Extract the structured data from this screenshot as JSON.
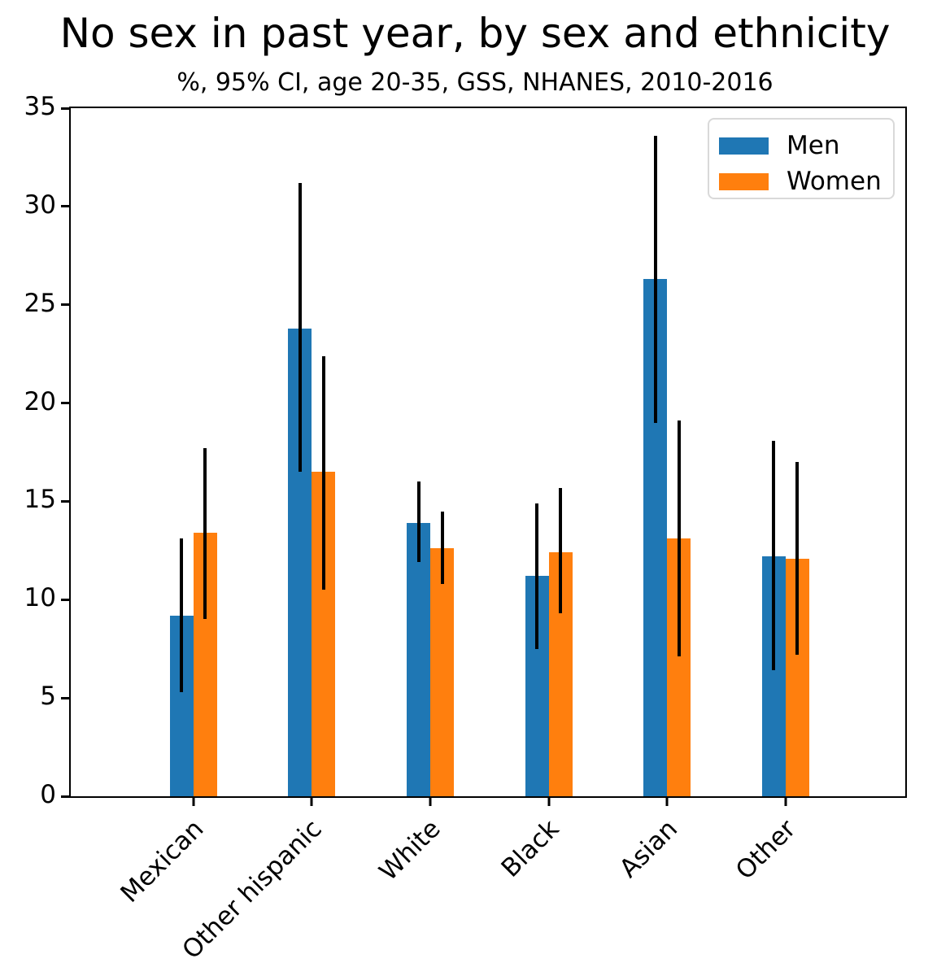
{
  "chart_data": {
    "type": "bar",
    "title": "No sex in past year, by sex and ethnicity",
    "subtitle": "%, 95% CI, age 20-35, GSS, NHANES, 2010-2016",
    "categories": [
      "Mexican",
      "Other hispanic",
      "White",
      "Black",
      "Asian",
      "Other"
    ],
    "series": [
      {
        "name": "Men",
        "color": "#1f77b4",
        "values": [
          9.2,
          23.8,
          13.9,
          11.2,
          26.3,
          12.2
        ],
        "ci_low": [
          5.3,
          16.5,
          11.9,
          7.5,
          19.0,
          6.4
        ],
        "ci_high": [
          13.1,
          31.2,
          16.0,
          14.9,
          33.6,
          18.1
        ]
      },
      {
        "name": "Women",
        "color": "#ff7f0e",
        "values": [
          13.4,
          16.5,
          12.6,
          12.4,
          13.1,
          12.1
        ],
        "ci_low": [
          9.0,
          10.5,
          10.8,
          9.3,
          7.1,
          7.2
        ],
        "ci_high": [
          17.7,
          22.4,
          14.5,
          15.7,
          19.1,
          17.0
        ]
      }
    ],
    "error_bars": "95% CI",
    "error_color": "#000000",
    "ylim": [
      0,
      35
    ],
    "yticks": [
      0,
      5,
      10,
      15,
      20,
      25,
      30,
      35
    ],
    "xlabel": "",
    "ylabel": "",
    "grid": false,
    "legend_position": "upper right"
  }
}
